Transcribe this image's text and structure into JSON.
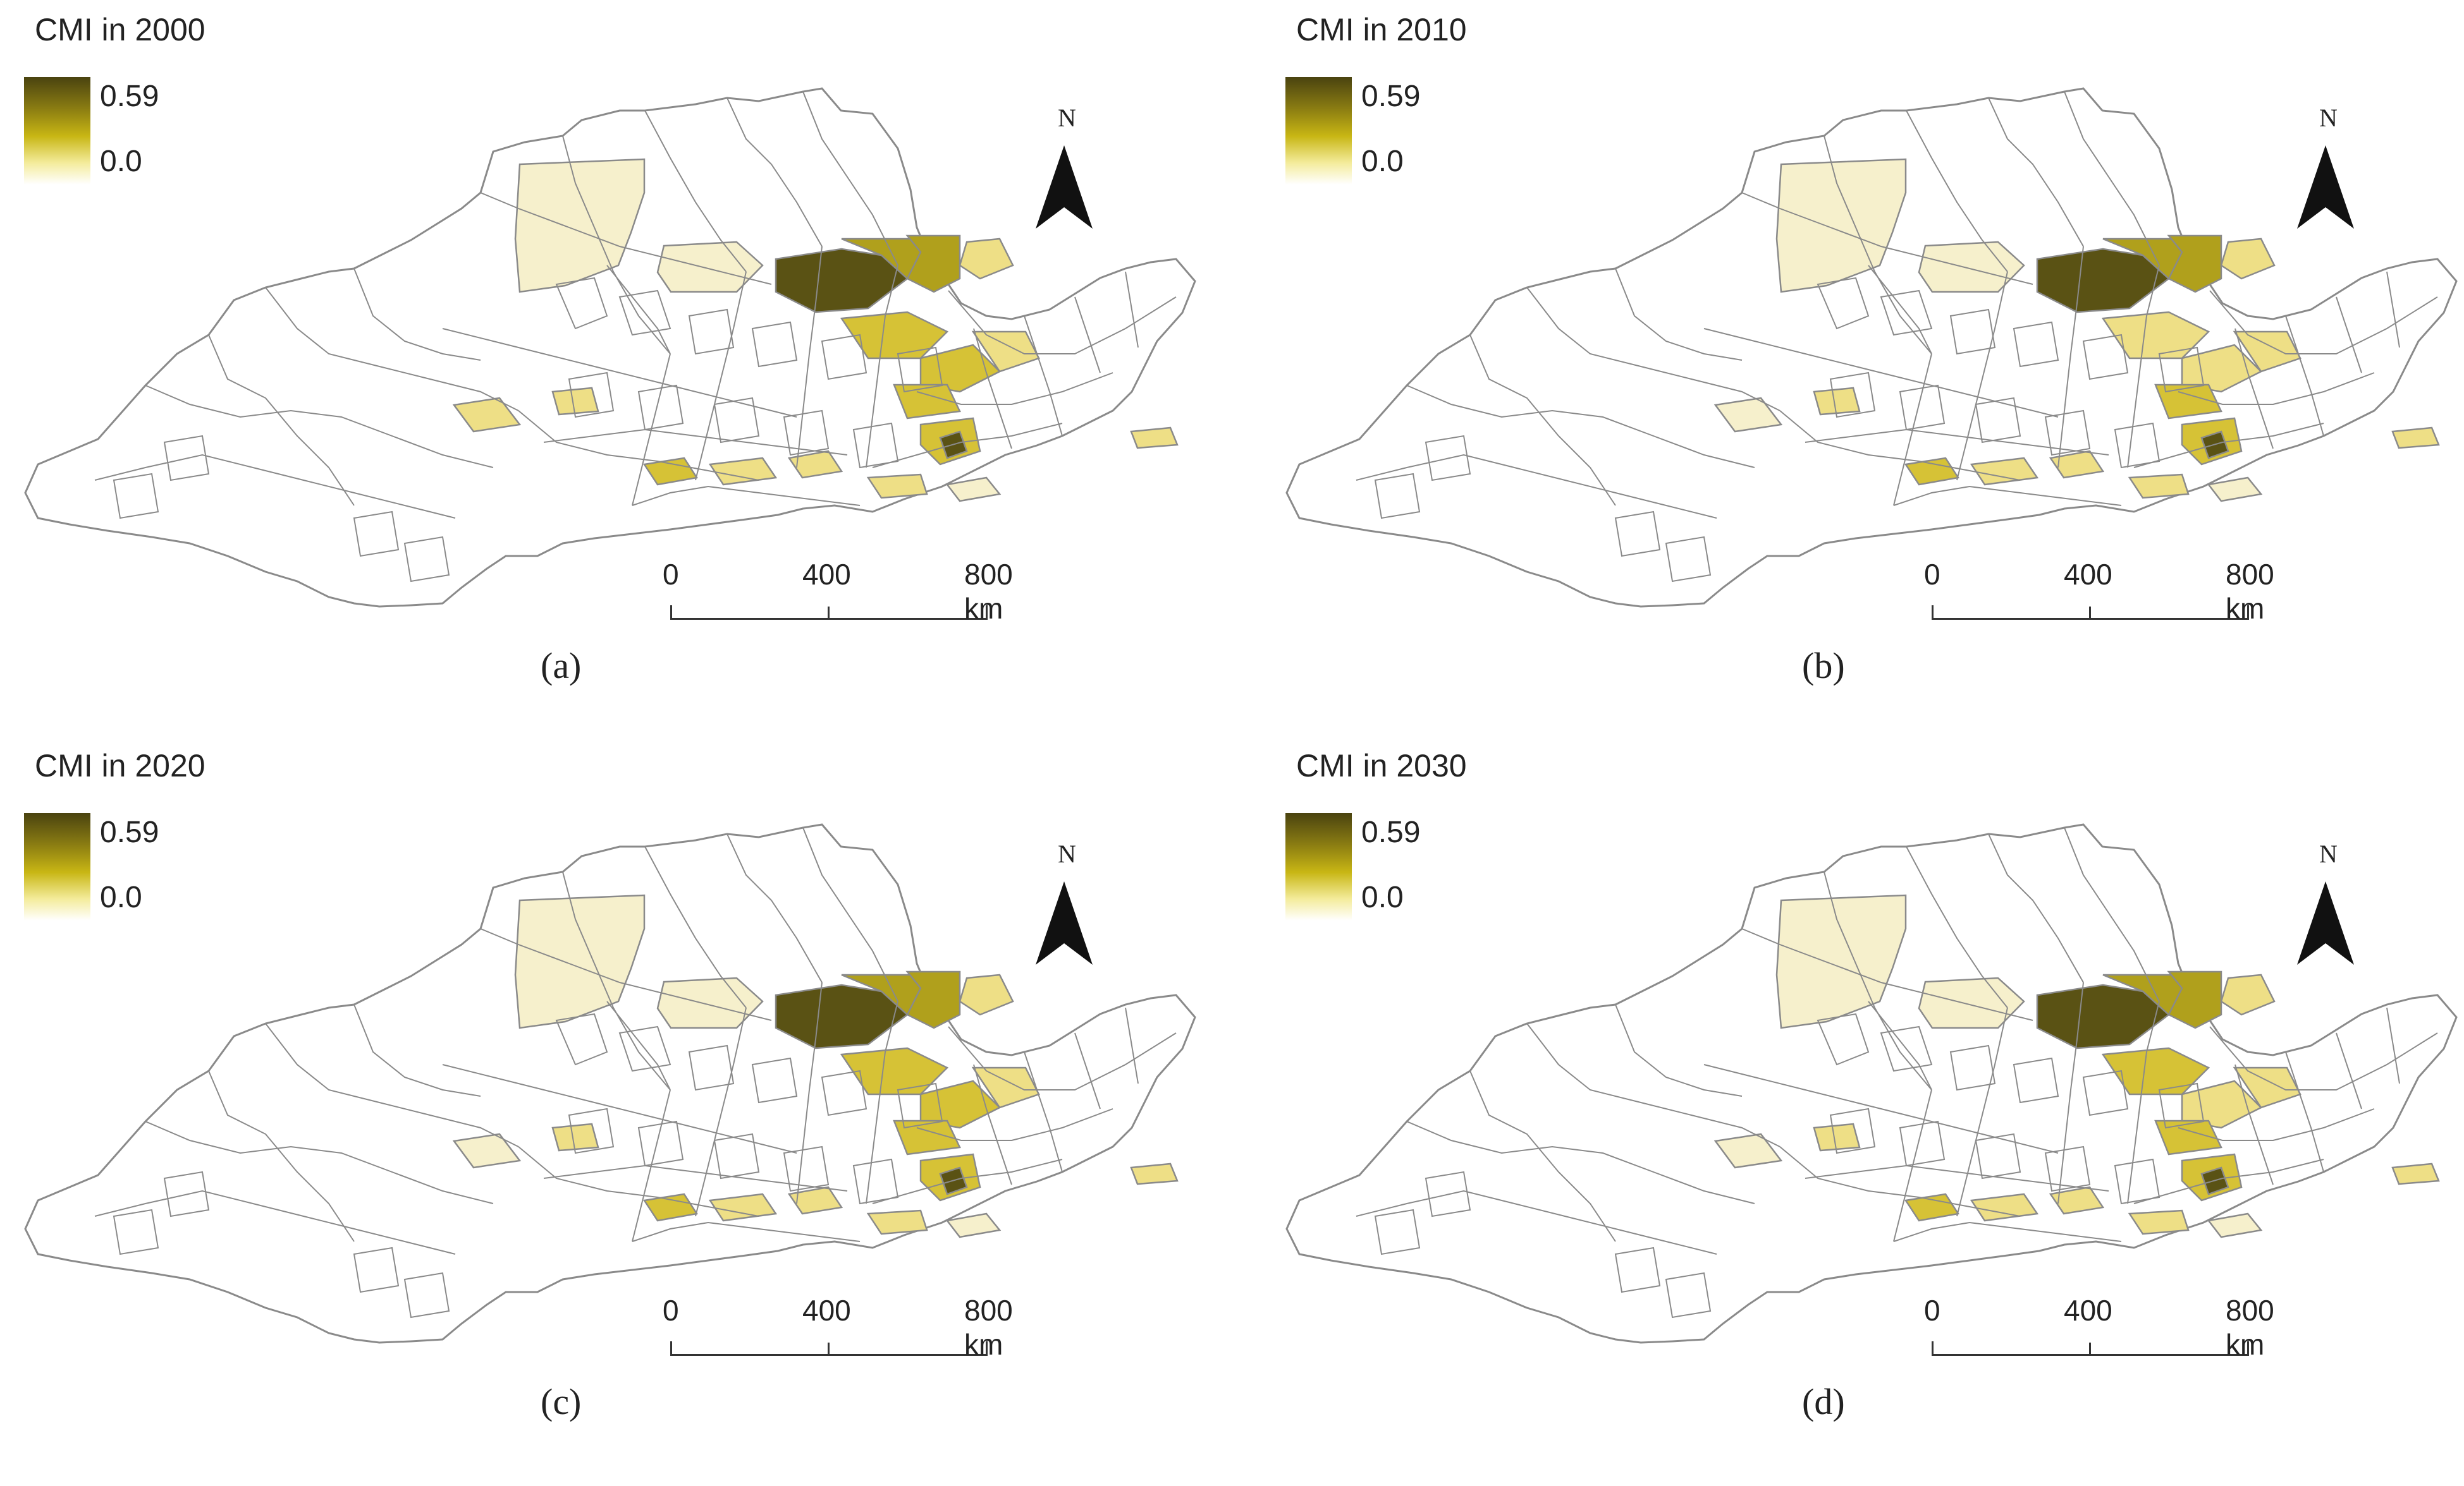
{
  "legend": {
    "max_label": "0.59",
    "min_label": "0.0",
    "ramp_colors": [
      "#4a4310",
      "#8c7e12",
      "#c8b614",
      "#f4ec9c",
      "#ffffff"
    ]
  },
  "north": {
    "label": "N"
  },
  "scale": {
    "labels": [
      "0",
      "400",
      "800 km"
    ]
  },
  "panels": [
    {
      "title": "CMI in 2000",
      "letter": "(a)"
    },
    {
      "title": "CMI in 2010",
      "letter": "(b)"
    },
    {
      "title": "CMI in 2020",
      "letter": "(c)"
    },
    {
      "title": "CMI in 2030",
      "letter": "(d)"
    }
  ],
  "map": {
    "boundary_color": "#8a8a8a",
    "region_fill": "#ffffff",
    "class_colors": {
      "pale": "#f6f0cc",
      "light": "#eedf86",
      "mid": "#d6c236",
      "strong": "#b0a01c",
      "dark": "#5a5214"
    }
  }
}
